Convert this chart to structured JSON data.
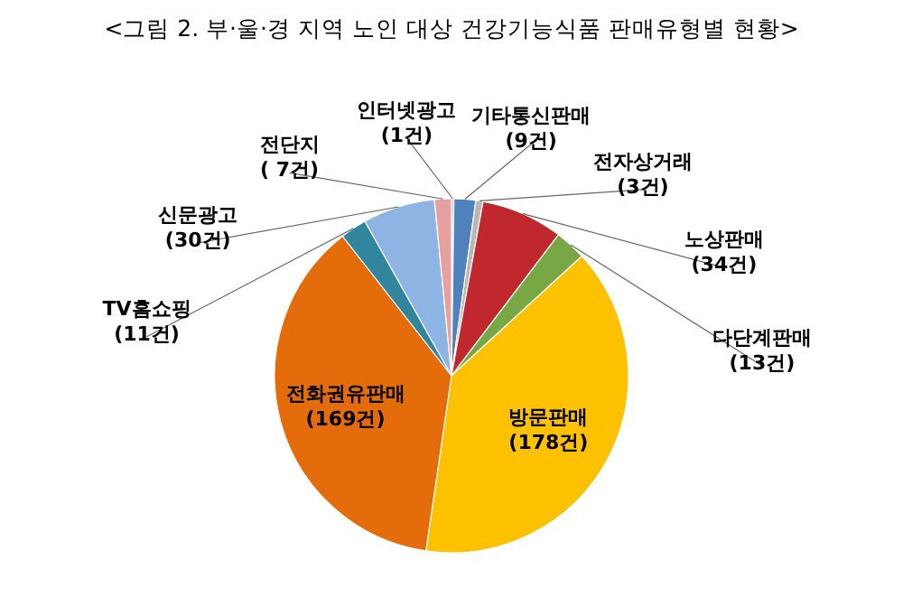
{
  "chart_data": {
    "type": "pie",
    "title": "<그림 2.  부·울·경 지역 노인 대상 건강기능식품 판매유형별 현황>",
    "categories": [
      "인터넷광고",
      "기타통신판매",
      "전자상거래",
      "노상판매",
      "다단계판매",
      "방문판매",
      "전화권유판매",
      "TV홈쇼핑",
      "신문광고",
      "전단지"
    ],
    "values": [
      1,
      9,
      3,
      34,
      13,
      178,
      169,
      11,
      30,
      7
    ],
    "value_labels": [
      "(1건)",
      "(9건)",
      "(3건)",
      "(34건)",
      "(13건)",
      "(178건)",
      "(169건)",
      "(11건)",
      "(30건)",
      "( 7건)"
    ],
    "colors": [
      "#c9b3d6",
      "#4f81bd",
      "#b8b8b8",
      "#c0282d",
      "#77a845",
      "#fdc100",
      "#e46c0a",
      "#31859c",
      "#8eb4e3",
      "#e6a0a0"
    ]
  }
}
